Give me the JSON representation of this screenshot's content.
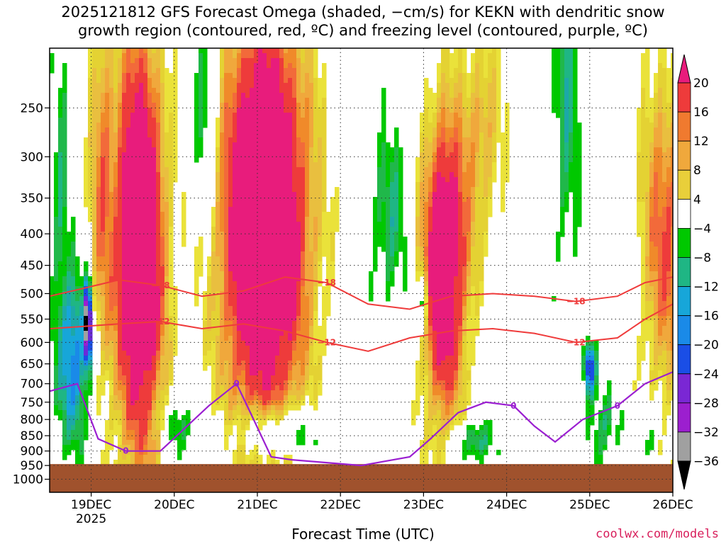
{
  "header": {
    "title_line1": "2025121812 GFS Forecast Omega (shaded, −cm/s) for KEKN with dendritic snow",
    "title_line2": "growth region (contoured, red, ºC) and freezing level (contoured, purple, ºC)"
  },
  "footer": {
    "xlabel": "Forecast Time (UTC)",
    "credit": "coolwx.com/models"
  },
  "chart_data": {
    "type": "heatmap",
    "xlabel": "Forecast Time (UTC)",
    "ylabel": "",
    "x_ticks": [
      {
        "label": "19DEC",
        "sub": "2025",
        "x": 12
      },
      {
        "label": "20DEC",
        "sub": "",
        "x": 36
      },
      {
        "label": "21DEC",
        "sub": "",
        "x": 60
      },
      {
        "label": "22DEC",
        "sub": "",
        "x": 84
      },
      {
        "label": "23DEC",
        "sub": "",
        "x": 108
      },
      {
        "label": "24DEC",
        "sub": "",
        "x": 132
      },
      {
        "label": "25DEC",
        "sub": "",
        "x": 156
      },
      {
        "label": "26DEC",
        "sub": "",
        "x": 180
      }
    ],
    "x_range_hours": [
      0,
      180
    ],
    "y_axis": "pressure (log scale, inverted)",
    "y_ticks": [
      250,
      300,
      350,
      400,
      450,
      500,
      550,
      600,
      650,
      700,
      750,
      800,
      850,
      900,
      950,
      1000
    ],
    "y_range": [
      200,
      1050
    ],
    "grid": true,
    "colorbar": {
      "labels": [
        "20",
        "16",
        "12",
        "8",
        "4",
        "−4",
        "−8",
        "−12",
        "−16",
        "−20",
        "−24",
        "−28",
        "−32",
        "−36"
      ],
      "bins": [
        {
          "range": [
            20,
            24
          ],
          "color": "#e81c7c"
        },
        {
          "range": [
            16,
            20
          ],
          "color": "#ee3b3b"
        },
        {
          "range": [
            14,
            16
          ],
          "color": "#f26a3a"
        },
        {
          "range": [
            12,
            14
          ],
          "color": "#f08a2a"
        },
        {
          "range": [
            10,
            12
          ],
          "color": "#f0a83c"
        },
        {
          "range": [
            8,
            10
          ],
          "color": "#e9bf3f"
        },
        {
          "range": [
            6,
            8
          ],
          "color": "#e4d233"
        },
        {
          "range": [
            4,
            6
          ],
          "color": "#eae23a"
        },
        {
          "range": [
            -4,
            4
          ],
          "color": "#ffffff"
        },
        {
          "range": [
            -6,
            -4
          ],
          "color": "#00c800"
        },
        {
          "range": [
            -8,
            -6
          ],
          "color": "#20b84a"
        },
        {
          "range": [
            -10,
            -8
          ],
          "color": "#1fb684"
        },
        {
          "range": [
            -12,
            -10
          ],
          "color": "#1ca8a8"
        },
        {
          "range": [
            -14,
            -12
          ],
          "color": "#17a6d9"
        },
        {
          "range": [
            -16,
            -14
          ],
          "color": "#1a8ae8"
        },
        {
          "range": [
            -20,
            -16
          ],
          "color": "#1a4ee6"
        },
        {
          "range": [
            -24,
            -20
          ],
          "color": "#6a2bd8"
        },
        {
          "range": [
            -28,
            -24
          ],
          "color": "#9c1fcf"
        },
        {
          "range": [
            -32,
            -28
          ],
          "color": "#a0a0a0"
        },
        {
          "range": [
            -36,
            -32
          ],
          "color": "#000000"
        }
      ]
    },
    "omega_features": [
      {
        "hours": [
          14,
          28
        ],
        "p": [
          200,
          760
        ],
        "peak": 20,
        "note": "upward motion"
      },
      {
        "hours": [
          50,
          76
        ],
        "p": [
          230,
          720
        ],
        "peak": 20,
        "note": "upward motion"
      },
      {
        "hours": [
          108,
          120
        ],
        "p": [
          240,
          700
        ],
        "peak": 20,
        "note": "upward motion"
      },
      {
        "hours": [
          2,
          12
        ],
        "p": [
          470,
          700
        ],
        "peak": -20,
        "note": "sinking"
      },
      {
        "hours": [
          145,
          154
        ],
        "p": [
          200,
          500
        ],
        "peak": -8,
        "note": "sinking"
      },
      {
        "hours": [
          170,
          180
        ],
        "p": [
          250,
          550
        ],
        "peak": 14,
        "note": "upward motion"
      }
    ],
    "dgz_contours": [
      {
        "name": "-18",
        "label": "−18",
        "hours": [
          0,
          10,
          20,
          32,
          44,
          56,
          68,
          80,
          92,
          104,
          116,
          128,
          140,
          152,
          164,
          172,
          180
        ],
        "p": [
          505,
          490,
          475,
          485,
          505,
          495,
          470,
          480,
          520,
          530,
          505,
          500,
          505,
          515,
          505,
          480,
          470
        ]
      },
      {
        "name": "-12",
        "label": "−12",
        "hours": [
          0,
          10,
          20,
          32,
          44,
          56,
          68,
          80,
          92,
          104,
          116,
          128,
          140,
          152,
          164,
          172,
          180
        ],
        "p": [
          570,
          565,
          560,
          555,
          570,
          560,
          575,
          600,
          620,
          590,
          575,
          570,
          580,
          600,
          590,
          550,
          520
        ]
      }
    ],
    "freezing_level": {
      "name": "0",
      "label": "0",
      "hours": [
        0,
        8,
        14,
        22,
        32,
        46,
        54,
        58,
        64,
        70,
        90,
        104,
        110,
        118,
        126,
        134,
        140,
        146,
        154,
        164,
        172,
        180
      ],
      "p": [
        720,
        700,
        860,
        900,
        900,
        760,
        700,
        780,
        920,
        930,
        950,
        920,
        860,
        780,
        750,
        760,
        820,
        870,
        800,
        760,
        700,
        670
      ]
    },
    "ground": {
      "p_top": 945,
      "color": "#a0522d"
    }
  },
  "colors": {
    "dgz": "#ef3b3b",
    "freezing": "#9b1fd1",
    "ground": "#a0522d",
    "credit": "#d81e5b"
  }
}
